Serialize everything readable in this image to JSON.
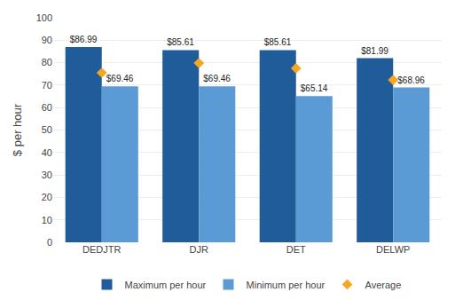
{
  "chart_data": {
    "type": "bar",
    "categories": [
      "DEDJTR",
      "DJR",
      "DET",
      "DELWP"
    ],
    "series": [
      {
        "name": "Maximum per hour",
        "color": "#1F5C99",
        "values": [
          86.99,
          85.61,
          85.61,
          81.99
        ],
        "value_labels": [
          "$86.99",
          "$85.61",
          "$85.61",
          "$81.99"
        ]
      },
      {
        "name": "Minimum per hour",
        "color": "#5B9BD5",
        "values": [
          69.46,
          69.46,
          65.14,
          68.96
        ],
        "value_labels": [
          "$69.46",
          "$69.46",
          "$65.14",
          "$68.96"
        ]
      },
      {
        "name": "Average",
        "type": "scatter",
        "marker": "diamond",
        "color": "#F5A623",
        "values": [
          75.5,
          79.8,
          77.5,
          72.3
        ]
      }
    ],
    "ylabel": "$ per hour",
    "ylim": [
      0,
      100
    ],
    "yticks": [
      0,
      10,
      20,
      30,
      40,
      50,
      60,
      70,
      80,
      90,
      100
    ],
    "grid": true,
    "legend": "bottom",
    "data_labels": true
  }
}
